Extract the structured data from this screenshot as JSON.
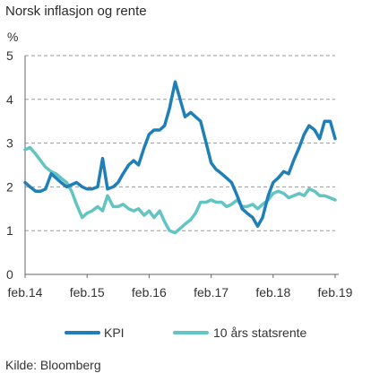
{
  "title": "Norsk inflasjon og rente",
  "source": "Kilde: Bloomberg",
  "chart_data": {
    "type": "line",
    "ylabel": "%",
    "ylim": [
      0,
      5
    ],
    "yticks": [
      0,
      1,
      2,
      3,
      4,
      5
    ],
    "xlim": [
      2014.0,
      2019.0
    ],
    "xticks": [
      {
        "x": 2014.0,
        "label": "feb.14"
      },
      {
        "x": 2015.0,
        "label": "feb.15"
      },
      {
        "x": 2016.0,
        "label": "feb.16"
      },
      {
        "x": 2017.0,
        "label": "feb.17"
      },
      {
        "x": 2018.0,
        "label": "feb.18"
      },
      {
        "x": 2019.0,
        "label": "feb.19"
      }
    ],
    "grid": "horizontal dashed",
    "legend_position": "bottom",
    "series": [
      {
        "name": "KPI",
        "color": "#1f7fb6",
        "points": [
          [
            2014.0,
            2.1
          ],
          [
            2014.08,
            2.0
          ],
          [
            2014.17,
            1.9
          ],
          [
            2014.25,
            1.9
          ],
          [
            2014.33,
            1.95
          ],
          [
            2014.42,
            2.3
          ],
          [
            2014.5,
            2.2
          ],
          [
            2014.58,
            2.1
          ],
          [
            2014.67,
            2.0
          ],
          [
            2014.75,
            2.05
          ],
          [
            2014.83,
            2.1
          ],
          [
            2014.92,
            2.0
          ],
          [
            2015.0,
            1.95
          ],
          [
            2015.08,
            1.95
          ],
          [
            2015.17,
            2.0
          ],
          [
            2015.25,
            2.65
          ],
          [
            2015.33,
            1.95
          ],
          [
            2015.42,
            2.0
          ],
          [
            2015.5,
            2.1
          ],
          [
            2015.58,
            2.3
          ],
          [
            2015.67,
            2.5
          ],
          [
            2015.75,
            2.6
          ],
          [
            2015.83,
            2.5
          ],
          [
            2015.92,
            2.9
          ],
          [
            2016.0,
            3.2
          ],
          [
            2016.08,
            3.3
          ],
          [
            2016.17,
            3.3
          ],
          [
            2016.25,
            3.4
          ],
          [
            2016.33,
            3.8
          ],
          [
            2016.42,
            4.4
          ],
          [
            2016.5,
            4.0
          ],
          [
            2016.58,
            3.6
          ],
          [
            2016.67,
            3.7
          ],
          [
            2016.75,
            3.6
          ],
          [
            2016.83,
            3.5
          ],
          [
            2016.92,
            3.0
          ],
          [
            2017.0,
            2.55
          ],
          [
            2017.08,
            2.4
          ],
          [
            2017.17,
            2.3
          ],
          [
            2017.25,
            2.2
          ],
          [
            2017.33,
            2.1
          ],
          [
            2017.42,
            1.8
          ],
          [
            2017.5,
            1.5
          ],
          [
            2017.58,
            1.4
          ],
          [
            2017.67,
            1.3
          ],
          [
            2017.75,
            1.1
          ],
          [
            2017.83,
            1.3
          ],
          [
            2017.92,
            1.8
          ],
          [
            2018.0,
            2.1
          ],
          [
            2018.08,
            2.2
          ],
          [
            2018.17,
            2.35
          ],
          [
            2018.25,
            2.3
          ],
          [
            2018.33,
            2.6
          ],
          [
            2018.42,
            2.9
          ],
          [
            2018.5,
            3.2
          ],
          [
            2018.58,
            3.4
          ],
          [
            2018.67,
            3.3
          ],
          [
            2018.75,
            3.1
          ],
          [
            2018.83,
            3.5
          ],
          [
            2018.92,
            3.5
          ],
          [
            2019.0,
            3.1
          ]
        ]
      },
      {
        "name": "10 års statsrente",
        "color": "#62c4c3",
        "points": [
          [
            2014.0,
            2.85
          ],
          [
            2014.08,
            2.9
          ],
          [
            2014.17,
            2.75
          ],
          [
            2014.25,
            2.6
          ],
          [
            2014.33,
            2.45
          ],
          [
            2014.42,
            2.35
          ],
          [
            2014.5,
            2.3
          ],
          [
            2014.58,
            2.2
          ],
          [
            2014.67,
            2.1
          ],
          [
            2014.75,
            1.9
          ],
          [
            2014.83,
            1.6
          ],
          [
            2014.92,
            1.3
          ],
          [
            2015.0,
            1.4
          ],
          [
            2015.08,
            1.45
          ],
          [
            2015.17,
            1.55
          ],
          [
            2015.25,
            1.45
          ],
          [
            2015.33,
            1.8
          ],
          [
            2015.42,
            1.55
          ],
          [
            2015.5,
            1.55
          ],
          [
            2015.58,
            1.6
          ],
          [
            2015.67,
            1.5
          ],
          [
            2015.75,
            1.45
          ],
          [
            2015.83,
            1.5
          ],
          [
            2015.92,
            1.35
          ],
          [
            2016.0,
            1.45
          ],
          [
            2016.08,
            1.3
          ],
          [
            2016.17,
            1.45
          ],
          [
            2016.25,
            1.2
          ],
          [
            2016.33,
            1.0
          ],
          [
            2016.42,
            0.95
          ],
          [
            2016.5,
            1.05
          ],
          [
            2016.58,
            1.15
          ],
          [
            2016.67,
            1.25
          ],
          [
            2016.75,
            1.4
          ],
          [
            2016.83,
            1.65
          ],
          [
            2016.92,
            1.65
          ],
          [
            2017.0,
            1.7
          ],
          [
            2017.08,
            1.65
          ],
          [
            2017.17,
            1.65
          ],
          [
            2017.25,
            1.55
          ],
          [
            2017.33,
            1.6
          ],
          [
            2017.42,
            1.7
          ],
          [
            2017.5,
            1.55
          ],
          [
            2017.58,
            1.55
          ],
          [
            2017.67,
            1.6
          ],
          [
            2017.75,
            1.5
          ],
          [
            2017.83,
            1.6
          ],
          [
            2017.92,
            1.7
          ],
          [
            2018.0,
            1.85
          ],
          [
            2018.08,
            1.9
          ],
          [
            2018.17,
            1.85
          ],
          [
            2018.25,
            1.75
          ],
          [
            2018.33,
            1.8
          ],
          [
            2018.42,
            1.85
          ],
          [
            2018.5,
            1.8
          ],
          [
            2018.58,
            1.95
          ],
          [
            2018.67,
            1.9
          ],
          [
            2018.75,
            1.8
          ],
          [
            2018.83,
            1.8
          ],
          [
            2018.92,
            1.75
          ],
          [
            2019.0,
            1.7
          ]
        ]
      }
    ]
  }
}
